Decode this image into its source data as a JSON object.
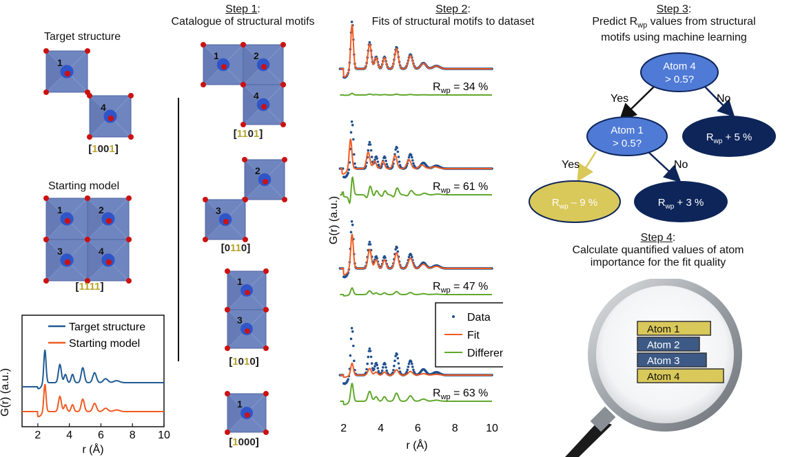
{
  "colors": {
    "octahedron_face": "#6f85bf",
    "octahedron_dark": "#4d63a0",
    "center_atom": "#2f55c8",
    "oxygen": "#cc1111",
    "target_line": "#1f5a94",
    "fit_line": "#f05a22",
    "difference_line": "#5fa82a",
    "data_points": "#1f4f8f",
    "highlight_digit": "#b9a52c",
    "node_light": "#4f7ad6",
    "node_dark": "#0d2559",
    "node_yellow": "#d9c85a"
  },
  "left": {
    "target_label": "Target structure",
    "target_code": [
      "1",
      "0",
      "0",
      "1"
    ],
    "target_atom_labels": [
      "1",
      "4"
    ],
    "starting_label": "Starting model",
    "starting_code": [
      "1",
      "1",
      "1",
      "1"
    ],
    "starting_atom_labels": [
      "1",
      "2",
      "3",
      "4"
    ],
    "code_open": "[",
    "code_close": "]"
  },
  "step1": {
    "step": "Step 1",
    "colon": ":",
    "title": "Catalogue of structural motifs",
    "motifs": [
      {
        "code": [
          "1",
          "1",
          "0",
          "1"
        ],
        "labels": [
          "1",
          "2",
          "4"
        ]
      },
      {
        "code": [
          "0",
          "1",
          "1",
          "0"
        ],
        "labels": [
          "2",
          "3"
        ]
      },
      {
        "code": [
          "1",
          "0",
          "1",
          "0"
        ],
        "labels": [
          "1",
          "3"
        ]
      },
      {
        "code": [
          "1",
          "0",
          "0",
          "0"
        ],
        "labels": [
          "1"
        ]
      }
    ]
  },
  "step2": {
    "step": "Step 2",
    "colon": ":",
    "title": "Fits of structural motifs to dataset",
    "rwp_values": [
      "R",
      "wp",
      " = 34 %",
      " = 61 %",
      " = 47 %",
      " = 63 %"
    ],
    "legend": [
      "Data",
      "Fit",
      "Difference"
    ],
    "ylabel": "G(r) (a.u.)",
    "xlabel": "r (Å)",
    "x_ticks": [
      "2",
      "4",
      "6",
      "8",
      "10"
    ]
  },
  "step3": {
    "step": "Step 3",
    "colon": ":",
    "title_line1_pre": "Predict R",
    "title_line1_sub": "wp",
    "title_line1_post": " values from structural",
    "title_line2": "motifs using machine learning",
    "node_atom4_l1": "Atom 4",
    "node_atom4_l2": "> 0.5?",
    "node_atom1_l1": "Atom 1",
    "node_atom1_l2": "> 0.5?",
    "yes": "Yes",
    "no": "No",
    "leaf_plus5": " + 5 %",
    "leaf_minus9": " – 9 %",
    "leaf_plus3": " + 3 %",
    "r_letter": "R",
    "wp": "wp"
  },
  "step4": {
    "step": "Step 4",
    "colon": ":",
    "title_line1": "Calculate quantified values of atom",
    "title_line2": "importance for the fit quality",
    "bars": [
      {
        "label": "Atom 1",
        "value": 0.85,
        "color": "#d9c85a"
      },
      {
        "label": "Atom 2",
        "value": 0.72,
        "color": "#3d5a86"
      },
      {
        "label": "Atom 3",
        "value": 0.8,
        "color": "#3d5a86"
      },
      {
        "label": "Atom 4",
        "value": 1.0,
        "color": "#d9c85a"
      }
    ]
  },
  "inset_chart": {
    "legend": [
      "Target structure",
      "Starting model"
    ],
    "ylabel": "G(r) (a.u.)",
    "xlabel": "r (Å)",
    "x_ticks": [
      "2",
      "4",
      "6",
      "8",
      "10"
    ]
  }
}
